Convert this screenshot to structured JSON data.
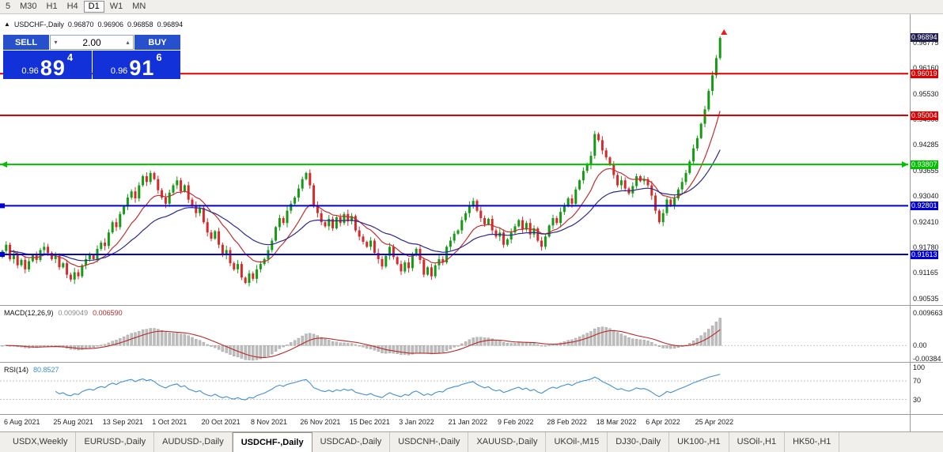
{
  "toolbar": {
    "timeframes": [
      {
        "label": "5",
        "active": false
      },
      {
        "label": "M30",
        "active": false
      },
      {
        "label": "H1",
        "active": false
      },
      {
        "label": "H4",
        "active": false
      },
      {
        "label": "D1",
        "active": true
      },
      {
        "label": "W1",
        "active": false
      },
      {
        "label": "MN",
        "active": false
      }
    ]
  },
  "chart_header": {
    "direction_icon": "▲",
    "symbol_period": "USDCHF-,Daily",
    "open": "0.96870",
    "high": "0.96906",
    "low": "0.96858",
    "close": "0.96894"
  },
  "trade_panel": {
    "sell_label": "SELL",
    "buy_label": "BUY",
    "volume": "2.00",
    "bid": {
      "prefix": "0.96",
      "big": "89",
      "sup": "4"
    },
    "ask": {
      "prefix": "0.96",
      "big": "91",
      "sup": "6"
    }
  },
  "chart_data": {
    "type": "candlestick",
    "symbol": "USDCHF-",
    "period": "Daily",
    "ohlc": {
      "open": 0.9687,
      "high": 0.96906,
      "low": 0.96858,
      "close": 0.96894
    },
    "ylim": [
      0.904,
      0.9747
    ],
    "first_open": 0.9155,
    "current_price": 0.96894,
    "closes": [
      0.917,
      0.9185,
      0.915,
      0.9162,
      0.9135,
      0.9148,
      0.9125,
      0.9145,
      0.916,
      0.9148,
      0.9172,
      0.918,
      0.9165,
      0.915,
      0.9158,
      0.913,
      0.914,
      0.9112,
      0.91,
      0.9118,
      0.9108,
      0.9135,
      0.915,
      0.916,
      0.915,
      0.9175,
      0.919,
      0.9182,
      0.9215,
      0.924,
      0.9228,
      0.926,
      0.9278,
      0.93,
      0.9315,
      0.9298,
      0.933,
      0.9352,
      0.9338,
      0.936,
      0.9345,
      0.9318,
      0.93,
      0.9285,
      0.9312,
      0.933,
      0.9342,
      0.9315,
      0.933,
      0.9295,
      0.928,
      0.9262,
      0.9275,
      0.924,
      0.9215,
      0.92,
      0.9218,
      0.9185,
      0.916,
      0.9172,
      0.914,
      0.9125,
      0.9138,
      0.9105,
      0.9092,
      0.9115,
      0.9102,
      0.9125,
      0.9138,
      0.915,
      0.9172,
      0.9195,
      0.9228,
      0.925,
      0.9238,
      0.9268,
      0.9285,
      0.93,
      0.9322,
      0.9345,
      0.936,
      0.933,
      0.928,
      0.9262,
      0.924,
      0.923,
      0.9248,
      0.9225,
      0.9252,
      0.9238,
      0.926,
      0.9242,
      0.9255,
      0.922,
      0.9205,
      0.9192,
      0.918,
      0.9195,
      0.9165,
      0.915,
      0.9132,
      0.9158,
      0.918,
      0.9155,
      0.9138,
      0.912,
      0.9142,
      0.9128,
      0.916,
      0.9175,
      0.9148,
      0.9112,
      0.913,
      0.9108,
      0.9135,
      0.915,
      0.9142,
      0.918,
      0.9195,
      0.9212,
      0.922,
      0.9245,
      0.9262,
      0.928,
      0.9292,
      0.9268,
      0.925,
      0.9235,
      0.9248,
      0.922,
      0.9205,
      0.9215,
      0.9185,
      0.9198,
      0.9215,
      0.923,
      0.9245,
      0.9222,
      0.9238,
      0.921,
      0.9225,
      0.9195,
      0.918,
      0.9205,
      0.9232,
      0.925,
      0.9238,
      0.9265,
      0.928,
      0.9298,
      0.9285,
      0.932,
      0.9342,
      0.9365,
      0.938,
      0.9402,
      0.9455,
      0.944,
      0.9415,
      0.9398,
      0.938,
      0.9355,
      0.933,
      0.9342,
      0.9322,
      0.931,
      0.9328,
      0.9352,
      0.934,
      0.9345,
      0.933,
      0.9305,
      0.9268,
      0.924,
      0.9262,
      0.9295,
      0.928,
      0.9298,
      0.932,
      0.9338,
      0.936,
      0.9388,
      0.942,
      0.9445,
      0.948,
      0.9515,
      0.956,
      0.9598,
      0.964,
      0.9689
    ],
    "y_ticks": [
      0.96775,
      0.9616,
      0.9553,
      0.949,
      0.94285,
      0.93655,
      0.9304,
      0.9241,
      0.9178,
      0.91165,
      0.90535
    ],
    "hlines": [
      {
        "value": 0.96019,
        "color": "#e00000",
        "style": "plain"
      },
      {
        "value": 0.95004,
        "color": "#e00000",
        "style": "plain"
      },
      {
        "value": 0.93807,
        "color": "#00c000",
        "style": "arrows"
      },
      {
        "value": 0.92801,
        "color": "#0000d8",
        "style": "squares"
      },
      {
        "value": 0.91613,
        "color": "#0000d8",
        "style": "squares"
      }
    ],
    "x_axis": {
      "labels": [
        "6 Aug 2021",
        "25 Aug 2021",
        "13 Sep 2021",
        "1 Oct 2021",
        "20 Oct 2021",
        "8 Nov 2021",
        "26 Nov 2021",
        "15 Dec 2021",
        "3 Jan 2022",
        "21 Jan 2022",
        "9 Feb 2022",
        "28 Feb 2022",
        "18 Mar 2022",
        "6 Apr 2022",
        "25 Apr 2022"
      ],
      "first_index": 0,
      "index_step": 13
    },
    "macd": {
      "label": "MACD(12,26,9)",
      "value_main": "0.009049",
      "value_signal": "0.006590",
      "range": [
        -0.0046,
        0.0115
      ],
      "axis_labels": [
        {
          "text": "0.009663",
          "value": 0.009663
        },
        {
          "text": "0.00",
          "value": 0
        },
        {
          "text": "-0.00384",
          "value": -0.00384
        }
      ]
    },
    "rsi": {
      "label": "RSI(14)",
      "value": "80.8527",
      "range": [
        0,
        108
      ],
      "levels": [
        {
          "text": "100",
          "value": 100
        },
        {
          "text": "70",
          "value": 70
        },
        {
          "text": "30",
          "value": 30
        }
      ],
      "dashed_levels": [
        70,
        30
      ]
    }
  },
  "colors": {
    "candle_up": "#169a16",
    "candle_down": "#d42a2a",
    "ma_fast": "#c03030",
    "ma_slow": "#2b2b8f",
    "macd_histogram": "#bdbdbd",
    "macd_signal": "#b82828",
    "rsi_line": "#3f8fd2",
    "current_price_bg": "#202050",
    "panel_button_blue": "#2750cc",
    "panel_price_blue": "#1231d8"
  },
  "bottom_tabs": [
    {
      "label": "USDX,Weekly",
      "active": false
    },
    {
      "label": "EURUSD-,Daily",
      "active": false
    },
    {
      "label": "AUDUSD-,Daily",
      "active": false
    },
    {
      "label": "USDCHF-,Daily",
      "active": true
    },
    {
      "label": "USDCAD-,Daily",
      "active": false
    },
    {
      "label": "USDCNH-,Daily",
      "active": false
    },
    {
      "label": "XAUUSD-,Daily",
      "active": false
    },
    {
      "label": "UKOil-,M15",
      "active": false
    },
    {
      "label": "DJ30-,Daily",
      "active": false
    },
    {
      "label": "UK100-,H1",
      "active": false
    },
    {
      "label": "USOil-,H1",
      "active": false
    },
    {
      "label": "HK50-,H1",
      "active": false
    }
  ]
}
